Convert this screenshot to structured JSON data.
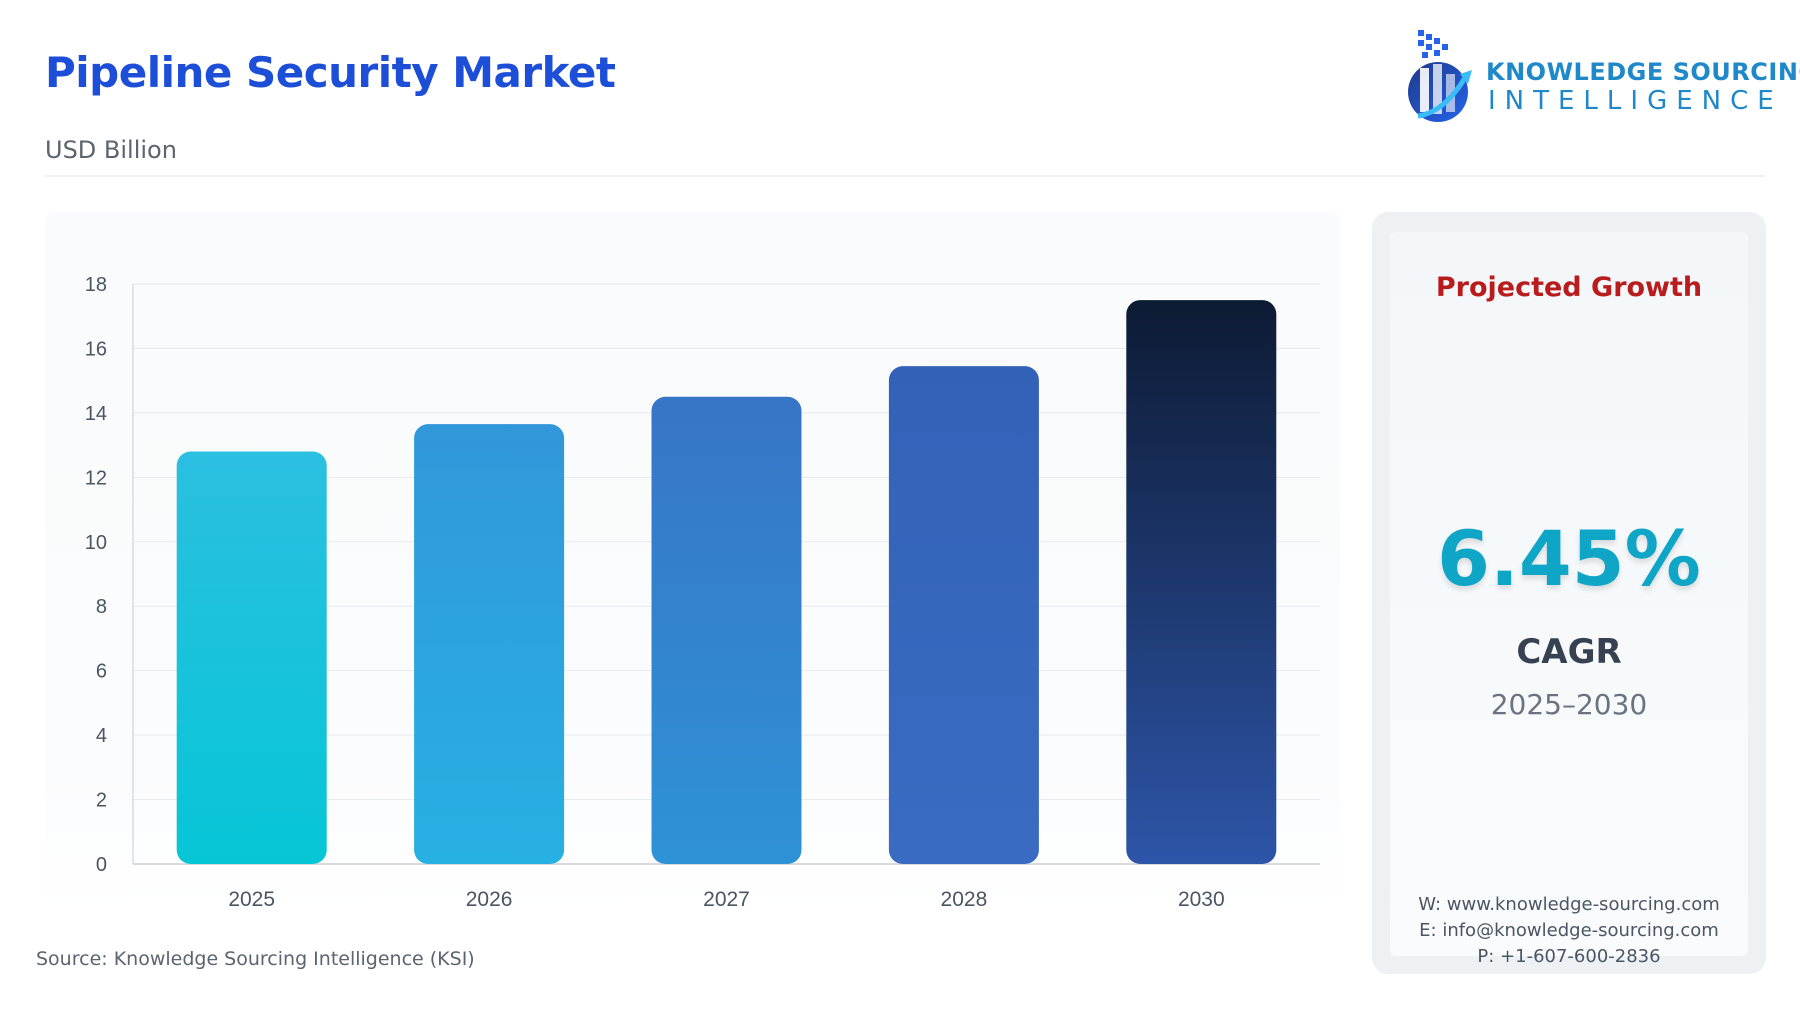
{
  "header": {
    "title": "Pipeline Security Market",
    "subtitle": "USD Billion"
  },
  "logo": {
    "line1": "KNOWLEDGE SOURCING",
    "line2": "INTELLIGENCE"
  },
  "source": "Source: Knowledge Sourcing Intelligence (KSI)",
  "side_panel": {
    "title": "Projected Growth",
    "value": "6.45%",
    "label": "CAGR",
    "period": "2025–2030",
    "contact": {
      "web": "W: www.knowledge-sourcing.com",
      "email": "E: info@knowledge-sourcing.com",
      "phone": "P: +1-607-600-2836"
    }
  },
  "colors": {
    "title": "#1d4ed8",
    "cagr": "#0ea5c6",
    "projected_growth": "#b91c1c"
  },
  "chart_data": {
    "type": "bar",
    "categories": [
      "2025",
      "2026",
      "2027",
      "2028",
      "2030"
    ],
    "values": [
      12.8,
      13.65,
      14.5,
      15.45,
      17.5
    ],
    "ylim": [
      0,
      18
    ],
    "yticks": [
      0,
      2,
      4,
      6,
      8,
      10,
      12,
      14,
      16,
      18
    ],
    "grid": true,
    "bar_colors": [
      [
        "#2bbfe0",
        "#06c6d6"
      ],
      [
        "#3197da",
        "#27b0e2"
      ],
      [
        "#3775c6",
        "#2f92d6"
      ],
      [
        "#3461b8",
        "#3a6bc2"
      ],
      [
        "#0d1a33",
        "#2d55a8"
      ]
    ]
  }
}
